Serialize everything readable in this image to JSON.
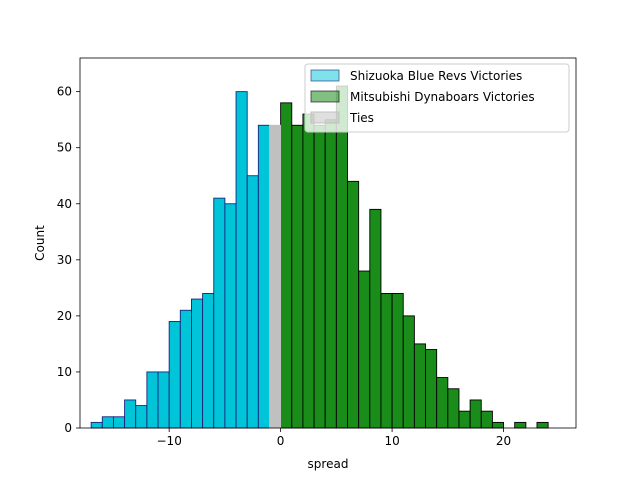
{
  "chart_data": {
    "type": "bar",
    "title": "",
    "xlabel": "spread",
    "ylabel": "Count",
    "xlim": [
      -18,
      26.5
    ],
    "ylim": [
      0,
      66
    ],
    "xticks": [
      -10,
      0,
      10,
      20
    ],
    "xtick_labels": [
      "−10",
      "0",
      "10",
      "20"
    ],
    "yticks": [
      0,
      10,
      20,
      30,
      40,
      50,
      60
    ],
    "ytick_labels": [
      "0",
      "10",
      "20",
      "30",
      "40",
      "50",
      "60"
    ],
    "bin_width": 1,
    "grid": false,
    "legend_position": "top-right",
    "series": [
      {
        "name": "Shizuoka Blue Revs Victories",
        "fill": "#00c5d8",
        "edge": "#1a237e",
        "bins": [
          {
            "x": -16.5,
            "count": 1
          },
          {
            "x": -15.5,
            "count": 2
          },
          {
            "x": -14.5,
            "count": 2
          },
          {
            "x": -13.5,
            "count": 5
          },
          {
            "x": -12.5,
            "count": 4
          },
          {
            "x": -11.5,
            "count": 10
          },
          {
            "x": -10.5,
            "count": 10
          },
          {
            "x": -9.5,
            "count": 19
          },
          {
            "x": -8.5,
            "count": 21
          },
          {
            "x": -7.5,
            "count": 23
          },
          {
            "x": -6.5,
            "count": 24
          },
          {
            "x": -5.5,
            "count": 41
          },
          {
            "x": -4.5,
            "count": 40
          },
          {
            "x": -3.5,
            "count": 60
          },
          {
            "x": -2.5,
            "count": 45
          },
          {
            "x": -1.5,
            "count": 54
          }
        ]
      },
      {
        "name": "Mitsubishi Dynaboars Victories",
        "fill": "#1a8c1a",
        "edge": "#000000",
        "bins": [
          {
            "x": 0.5,
            "count": 58
          },
          {
            "x": 1.5,
            "count": 54
          },
          {
            "x": 2.5,
            "count": 56
          },
          {
            "x": 3.5,
            "count": 54
          },
          {
            "x": 4.5,
            "count": 55
          },
          {
            "x": 5.5,
            "count": 61
          },
          {
            "x": 6.5,
            "count": 44
          },
          {
            "x": 7.5,
            "count": 28
          },
          {
            "x": 8.5,
            "count": 39
          },
          {
            "x": 9.5,
            "count": 24
          },
          {
            "x": 10.5,
            "count": 24
          },
          {
            "x": 11.5,
            "count": 20
          },
          {
            "x": 12.5,
            "count": 15
          },
          {
            "x": 13.5,
            "count": 14
          },
          {
            "x": 14.5,
            "count": 9
          },
          {
            "x": 15.5,
            "count": 7
          },
          {
            "x": 16.5,
            "count": 3
          },
          {
            "x": 17.5,
            "count": 5
          },
          {
            "x": 18.5,
            "count": 3
          },
          {
            "x": 19.5,
            "count": 1
          },
          {
            "x": 21.5,
            "count": 1
          },
          {
            "x": 23.5,
            "count": 1
          }
        ]
      },
      {
        "name": "Ties",
        "fill": "#c0c0c0",
        "edge": "#c0c0c0",
        "bins": [
          {
            "x": -0.5,
            "count": 54
          }
        ]
      }
    ]
  }
}
